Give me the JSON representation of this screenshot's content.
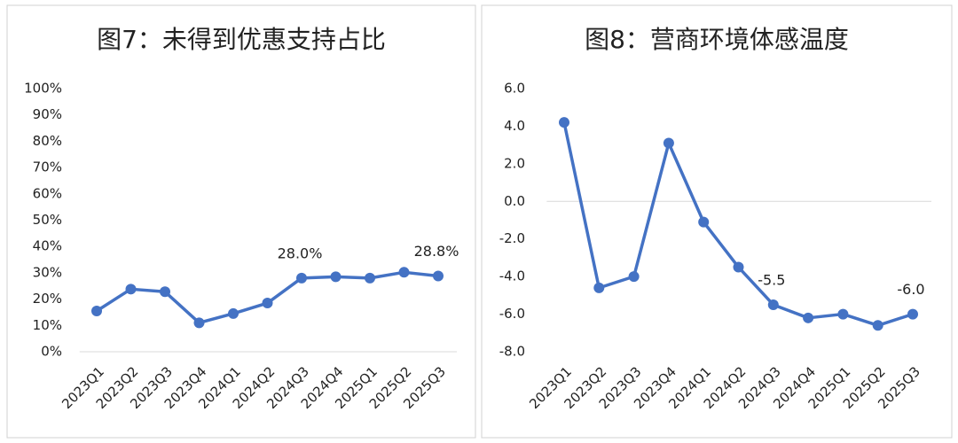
{
  "chart_data": [
    {
      "type": "line",
      "title": "图7：未得到优惠支持占比",
      "categories": [
        "2023Q1",
        "2023Q2",
        "2023Q3",
        "2023Q4",
        "2024Q1",
        "2024Q2",
        "2024Q3",
        "2024Q4",
        "2025Q1",
        "2025Q2",
        "2025Q3"
      ],
      "series": [
        {
          "name": "未得到优惠支持占比",
          "color": "#4472c4",
          "values": [
            15.5,
            23.8,
            22.8,
            11,
            14.5,
            18.5,
            28.0,
            28.5,
            28,
            30.2,
            28.8
          ],
          "value_labels": [
            null,
            null,
            null,
            null,
            null,
            null,
            "28.0%",
            null,
            null,
            null,
            "28.8%"
          ]
        }
      ],
      "ylim": [
        0,
        100
      ],
      "yticks": [
        {
          "value": 0,
          "label": "0%"
        },
        {
          "value": 10,
          "label": "10%"
        },
        {
          "value": 20,
          "label": "20%"
        },
        {
          "value": 30,
          "label": "30%"
        },
        {
          "value": 40,
          "label": "40%"
        },
        {
          "value": 50,
          "label": "50%"
        },
        {
          "value": 60,
          "label": "60%"
        },
        {
          "value": 70,
          "label": "70%"
        },
        {
          "value": 80,
          "label": "80%"
        },
        {
          "value": 90,
          "label": "90%"
        },
        {
          "value": 100,
          "label": "100%"
        }
      ]
    },
    {
      "type": "line",
      "title": "图8：营商环境体感温度",
      "categories": [
        "2023Q1",
        "2023Q2",
        "2023Q3",
        "2023Q4",
        "2024Q1",
        "2024Q2",
        "2024Q3",
        "2024Q4",
        "2025Q1",
        "2025Q2",
        "2025Q3"
      ],
      "series": [
        {
          "name": "营商环境体感温度",
          "color": "#4472c4",
          "values": [
            4.2,
            -4.6,
            -4.0,
            3.1,
            -1.1,
            -3.5,
            -5.5,
            -6.2,
            -6.0,
            -6.6,
            -6.0
          ],
          "value_labels": [
            null,
            null,
            null,
            null,
            null,
            null,
            "-5.5",
            null,
            null,
            null,
            "-6.0"
          ]
        }
      ],
      "ylim": [
        -8,
        6
      ],
      "yticks": [
        {
          "value": -8,
          "label": "-8.0"
        },
        {
          "value": -6,
          "label": "-6.0"
        },
        {
          "value": -4,
          "label": "-4.0"
        },
        {
          "value": -2,
          "label": "-2.0"
        },
        {
          "value": 0,
          "label": "0.0"
        },
        {
          "value": 2,
          "label": "2.0"
        },
        {
          "value": 4,
          "label": "4.0"
        },
        {
          "value": 6,
          "label": "6.0"
        }
      ]
    }
  ]
}
